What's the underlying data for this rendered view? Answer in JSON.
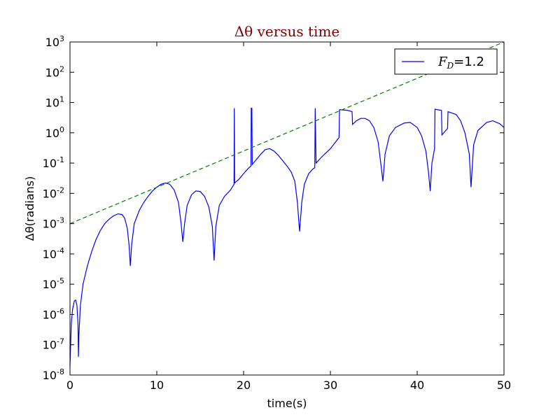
{
  "chart_data": {
    "type": "line",
    "title": "Δθ versus time",
    "xlabel": "time(s)",
    "ylabel": "Δθ(radians)",
    "xlim": [
      0,
      50
    ],
    "ylim": [
      1e-08,
      1000
    ],
    "yscale": "log",
    "grid": false,
    "legend_placement": "top-right",
    "x_ticks": [
      "0",
      "10",
      "20",
      "30",
      "40",
      "50"
    ],
    "y_ticks": [
      {
        "base": "10",
        "exp": "-8",
        "value": 1e-08
      },
      {
        "base": "10",
        "exp": "-7",
        "value": 1e-07
      },
      {
        "base": "10",
        "exp": "-6",
        "value": 1e-06
      },
      {
        "base": "10",
        "exp": "-5",
        "value": 1e-05
      },
      {
        "base": "10",
        "exp": "-4",
        "value": 0.0001
      },
      {
        "base": "10",
        "exp": "-3",
        "value": 0.001
      },
      {
        "base": "10",
        "exp": "-2",
        "value": 0.01
      },
      {
        "base": "10",
        "exp": "-1",
        "value": 0.1
      },
      {
        "base": "10",
        "exp": "0",
        "value": 1
      },
      {
        "base": "10",
        "exp": "1",
        "value": 10
      },
      {
        "base": "10",
        "exp": "2",
        "value": 100
      },
      {
        "base": "10",
        "exp": "3",
        "value": 1000
      }
    ],
    "legend_entries": [
      {
        "main": "F",
        "sub": "D",
        "rest": "=1.2",
        "color": "#0000ff"
      }
    ],
    "series": [
      {
        "name": "F_D=1.2",
        "color": "#0000ff",
        "style": "solid",
        "points": [
          [
            0.0,
            2e-08
          ],
          [
            0.15,
            5e-07
          ],
          [
            0.3,
            1.5e-06
          ],
          [
            0.5,
            2.8e-06
          ],
          [
            0.65,
            3e-06
          ],
          [
            0.8,
            2e-06
          ],
          [
            0.92,
            5e-07
          ],
          [
            0.97,
            4e-08
          ],
          [
            1.02,
            2e-07
          ],
          [
            1.2,
            2e-06
          ],
          [
            1.5,
            1e-05
          ],
          [
            2.0,
            4e-05
          ],
          [
            2.5,
            0.00012
          ],
          [
            3.0,
            0.0003
          ],
          [
            3.5,
            0.0006
          ],
          [
            4.0,
            0.001
          ],
          [
            4.5,
            0.0014
          ],
          [
            5.0,
            0.0018
          ],
          [
            5.5,
            0.0021
          ],
          [
            6.0,
            0.002
          ],
          [
            6.3,
            0.0015
          ],
          [
            6.6,
            0.0007
          ],
          [
            6.8,
            0.0002
          ],
          [
            6.95,
            4e-05
          ],
          [
            7.1,
            0.0002
          ],
          [
            7.4,
            0.001
          ],
          [
            8.0,
            0.0028
          ],
          [
            8.5,
            0.005
          ],
          [
            9.0,
            0.008
          ],
          [
            9.5,
            0.012
          ],
          [
            10.0,
            0.016
          ],
          [
            10.5,
            0.02
          ],
          [
            11.0,
            0.022
          ],
          [
            11.5,
            0.02
          ],
          [
            12.0,
            0.013
          ],
          [
            12.5,
            0.005
          ],
          [
            12.8,
            0.001
          ],
          [
            13.0,
            0.00025
          ],
          [
            13.2,
            0.001
          ],
          [
            13.5,
            0.004
          ],
          [
            14.0,
            0.009
          ],
          [
            14.5,
            0.012
          ],
          [
            15.0,
            0.0115
          ],
          [
            15.5,
            0.008
          ],
          [
            16.0,
            0.0035
          ],
          [
            16.4,
            0.0008
          ],
          [
            16.6,
            6e-05
          ],
          [
            16.8,
            0.0008
          ],
          [
            17.2,
            0.004
          ],
          [
            17.8,
            0.008
          ],
          [
            18.5,
            0.013
          ],
          [
            18.8,
            0.018
          ],
          [
            18.9,
            0.02
          ],
          [
            18.93,
            6.5
          ],
          [
            18.97,
            0.022
          ],
          [
            19.5,
            0.03
          ],
          [
            20.0,
            0.045
          ],
          [
            20.5,
            0.065
          ],
          [
            20.85,
            0.08
          ],
          [
            20.88,
            6.5
          ],
          [
            20.95,
            6.5
          ],
          [
            21.0,
            0.09
          ],
          [
            22.0,
            0.2
          ],
          [
            22.5,
            0.28
          ],
          [
            23.0,
            0.3
          ],
          [
            23.5,
            0.25
          ],
          [
            24.0,
            0.18
          ],
          [
            24.5,
            0.12
          ],
          [
            25.0,
            0.08
          ],
          [
            25.5,
            0.05
          ],
          [
            25.9,
            0.025
          ],
          [
            26.2,
            0.005
          ],
          [
            26.45,
            0.00055
          ],
          [
            26.7,
            0.005
          ],
          [
            27.0,
            0.02
          ],
          [
            27.5,
            0.045
          ],
          [
            28.0,
            0.065
          ],
          [
            28.2,
            0.07
          ],
          [
            28.25,
            6.5
          ],
          [
            28.35,
            0.1
          ],
          [
            29.0,
            0.16
          ],
          [
            30.0,
            0.3
          ],
          [
            31.0,
            0.7
          ],
          [
            31.05,
            5.8
          ],
          [
            32.0,
            5.5
          ],
          [
            32.5,
            5.0
          ],
          [
            32.55,
            1.9
          ],
          [
            33.0,
            2.5
          ],
          [
            33.5,
            3.0
          ],
          [
            34.0,
            3.0
          ],
          [
            34.5,
            2.5
          ],
          [
            35.0,
            1.5
          ],
          [
            35.5,
            0.5
          ],
          [
            35.8,
            0.1
          ],
          [
            36.05,
            0.025
          ],
          [
            36.3,
            0.2
          ],
          [
            36.8,
            0.8
          ],
          [
            37.5,
            1.5
          ],
          [
            38.5,
            2.1
          ],
          [
            39.2,
            2.2
          ],
          [
            40.0,
            1.5
          ],
          [
            40.5,
            0.8
          ],
          [
            41.0,
            0.25
          ],
          [
            41.3,
            0.05
          ],
          [
            41.5,
            0.012
          ],
          [
            41.7,
            0.1
          ],
          [
            42.0,
            0.3
          ],
          [
            42.05,
            6.0
          ],
          [
            42.8,
            5.5
          ],
          [
            42.85,
            0.85
          ],
          [
            43.5,
            1.4
          ],
          [
            43.55,
            5.0
          ],
          [
            44.5,
            4.0
          ],
          [
            45.0,
            2.5
          ],
          [
            45.5,
            1.0
          ],
          [
            46.0,
            0.2
          ],
          [
            46.2,
            0.016
          ],
          [
            46.5,
            0.4
          ],
          [
            47.0,
            1.2
          ],
          [
            48.0,
            2.2
          ],
          [
            48.7,
            2.5
          ],
          [
            49.5,
            2.0
          ],
          [
            50.0,
            1.5
          ]
        ]
      },
      {
        "color": "#008000",
        "style": "dashed",
        "points": [
          [
            0,
            0.001
          ],
          [
            50,
            1000
          ]
        ]
      }
    ]
  }
}
